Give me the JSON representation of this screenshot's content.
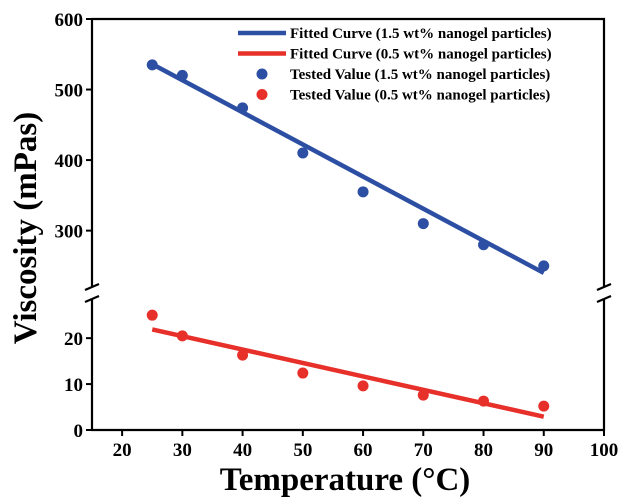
{
  "chart_data": {
    "type": "line",
    "title": "",
    "xlabel": "Temperature (°C)",
    "ylabel": "Viscosity (mPas)",
    "xlim": [
      15,
      100
    ],
    "x_ticks": [
      20,
      30,
      40,
      50,
      60,
      70,
      80,
      90,
      100
    ],
    "y_axis_break": true,
    "y_segments": [
      {
        "range": [
          0,
          27
        ],
        "ticks": [
          0,
          10,
          20
        ]
      },
      {
        "range": [
          230,
          600
        ],
        "ticks": [
          300,
          400,
          500,
          600
        ]
      }
    ],
    "grid": false,
    "legend_position": "top-right",
    "colors": {
      "blue": "#2c4fa3",
      "red": "#e8302a"
    },
    "series": [
      {
        "name": "Fitted Curve (1.5 wt% nanogel particles)",
        "kind": "line",
        "color": "#2c4fa3",
        "x": [
          25,
          90
        ],
        "y": [
          536,
          240
        ]
      },
      {
        "name": "Fitted Curve (0.5 wt% nanogel particles)",
        "kind": "line",
        "color": "#e8302a",
        "x": [
          25,
          90
        ],
        "y": [
          21.9,
          2.9
        ]
      },
      {
        "name": "Tested Value (1.5 wt% nanogel particles)",
        "kind": "scatter",
        "color": "#2c4fa3",
        "x": [
          25,
          30,
          40,
          50,
          60,
          70,
          80,
          90
        ],
        "y": [
          535,
          520,
          474,
          410,
          355,
          310,
          280,
          250
        ]
      },
      {
        "name": "Tested Value (0.5 wt% nanogel particles)",
        "kind": "scatter",
        "color": "#e8302a",
        "x": [
          25,
          30,
          40,
          50,
          60,
          70,
          80,
          90
        ],
        "y": [
          25,
          20.5,
          16.3,
          12.4,
          9.6,
          7.6,
          6.3,
          5.2
        ]
      }
    ]
  }
}
